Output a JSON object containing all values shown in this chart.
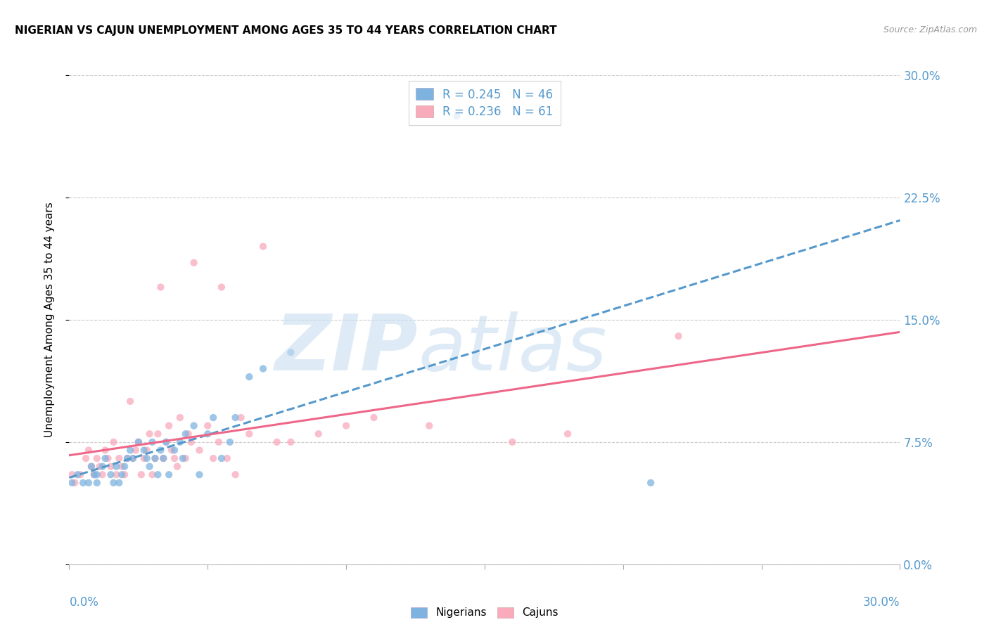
{
  "title": "NIGERIAN VS CAJUN UNEMPLOYMENT AMONG AGES 35 TO 44 YEARS CORRELATION CHART",
  "source": "Source: ZipAtlas.com",
  "ylabel_label": "Unemployment Among Ages 35 to 44 years",
  "xlim": [
    0.0,
    0.3
  ],
  "ylim": [
    0.0,
    0.3
  ],
  "legend_labels": [
    "Nigerians",
    "Cajuns"
  ],
  "legend_R": [
    0.245,
    0.236
  ],
  "legend_N": [
    46,
    61
  ],
  "nigerian_color": "#7EB3E0",
  "cajun_color": "#F9AABB",
  "nigerian_scatter_alpha": 0.75,
  "cajun_scatter_alpha": 0.75,
  "nigerian_marker_size": 55,
  "cajun_marker_size": 55,
  "watermark_zip": "ZIP",
  "watermark_atlas": "atlas",
  "watermark_color_zip": "#C5DCF0",
  "watermark_color_atlas": "#C5DCF0",
  "grid_color": "#CCCCCC",
  "grid_style": "--",
  "nigerian_line_color": "#5599CC",
  "cajun_line_color": "#EE6688",
  "tick_label_color": "#5599CC",
  "nigerian_x": [
    0.001,
    0.003,
    0.005,
    0.007,
    0.008,
    0.009,
    0.01,
    0.01,
    0.012,
    0.013,
    0.015,
    0.016,
    0.017,
    0.018,
    0.019,
    0.02,
    0.021,
    0.022,
    0.023,
    0.025,
    0.027,
    0.028,
    0.029,
    0.03,
    0.031,
    0.032,
    0.033,
    0.034,
    0.035,
    0.036,
    0.038,
    0.04,
    0.041,
    0.042,
    0.045,
    0.047,
    0.05,
    0.052,
    0.055,
    0.058,
    0.06,
    0.065,
    0.07,
    0.08,
    0.14,
    0.21
  ],
  "nigerian_y": [
    0.05,
    0.055,
    0.05,
    0.05,
    0.06,
    0.055,
    0.05,
    0.055,
    0.06,
    0.065,
    0.055,
    0.05,
    0.06,
    0.05,
    0.055,
    0.06,
    0.065,
    0.07,
    0.065,
    0.075,
    0.07,
    0.065,
    0.06,
    0.075,
    0.065,
    0.055,
    0.07,
    0.065,
    0.075,
    0.055,
    0.07,
    0.075,
    0.065,
    0.08,
    0.085,
    0.055,
    0.08,
    0.09,
    0.065,
    0.075,
    0.09,
    0.115,
    0.12,
    0.13,
    0.275,
    0.05
  ],
  "cajun_x": [
    0.001,
    0.002,
    0.004,
    0.006,
    0.007,
    0.008,
    0.009,
    0.01,
    0.011,
    0.012,
    0.013,
    0.014,
    0.015,
    0.016,
    0.017,
    0.018,
    0.019,
    0.02,
    0.021,
    0.022,
    0.023,
    0.024,
    0.025,
    0.026,
    0.027,
    0.028,
    0.029,
    0.03,
    0.031,
    0.032,
    0.033,
    0.034,
    0.035,
    0.036,
    0.037,
    0.038,
    0.039,
    0.04,
    0.042,
    0.043,
    0.044,
    0.045,
    0.047,
    0.05,
    0.052,
    0.054,
    0.055,
    0.057,
    0.06,
    0.062,
    0.065,
    0.07,
    0.075,
    0.08,
    0.09,
    0.1,
    0.11,
    0.13,
    0.16,
    0.18,
    0.22
  ],
  "cajun_y": [
    0.055,
    0.05,
    0.055,
    0.065,
    0.07,
    0.06,
    0.055,
    0.065,
    0.06,
    0.055,
    0.07,
    0.065,
    0.06,
    0.075,
    0.055,
    0.065,
    0.06,
    0.055,
    0.065,
    0.1,
    0.065,
    0.07,
    0.075,
    0.055,
    0.065,
    0.07,
    0.08,
    0.055,
    0.065,
    0.08,
    0.17,
    0.065,
    0.075,
    0.085,
    0.07,
    0.065,
    0.06,
    0.09,
    0.065,
    0.08,
    0.075,
    0.185,
    0.07,
    0.085,
    0.065,
    0.075,
    0.17,
    0.065,
    0.055,
    0.09,
    0.08,
    0.195,
    0.075,
    0.075,
    0.08,
    0.085,
    0.09,
    0.085,
    0.075,
    0.08,
    0.14
  ]
}
